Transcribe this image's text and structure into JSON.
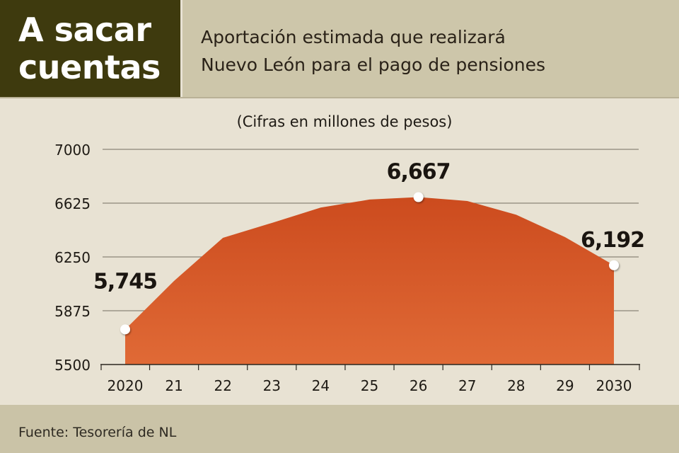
{
  "header": {
    "kicker_line1": "A sacar",
    "kicker_line2": "cuentas",
    "title_line1": "Aportación estimada que realizará",
    "title_line2": "Nuevo León para el pago de pensiones"
  },
  "chart_data": {
    "type": "area",
    "subtitle": "(Cifras en millones de pesos)",
    "categories": [
      "2020",
      "21",
      "22",
      "23",
      "24",
      "25",
      "26",
      "27",
      "28",
      "29",
      "2030"
    ],
    "values": [
      5745,
      6083,
      6383,
      6487,
      6594,
      6650,
      6667,
      6640,
      6544,
      6388,
      6192
    ],
    "labeled_points": [
      {
        "index": 0,
        "label": "5,745"
      },
      {
        "index": 6,
        "label": "6,667"
      },
      {
        "index": 10,
        "label": "6,192"
      }
    ],
    "yticks": [
      "7000",
      "6625",
      "6250",
      "5875",
      "5500"
    ],
    "ylim": [
      5500,
      7000
    ],
    "grid": true,
    "colors": {
      "area_top": "#cc4b1e",
      "area_bottom": "#e06a36",
      "grid": "#8a8577",
      "marker": "#ffffff"
    }
  },
  "footer": {
    "source": "Fuente: Tesorería de NL"
  }
}
